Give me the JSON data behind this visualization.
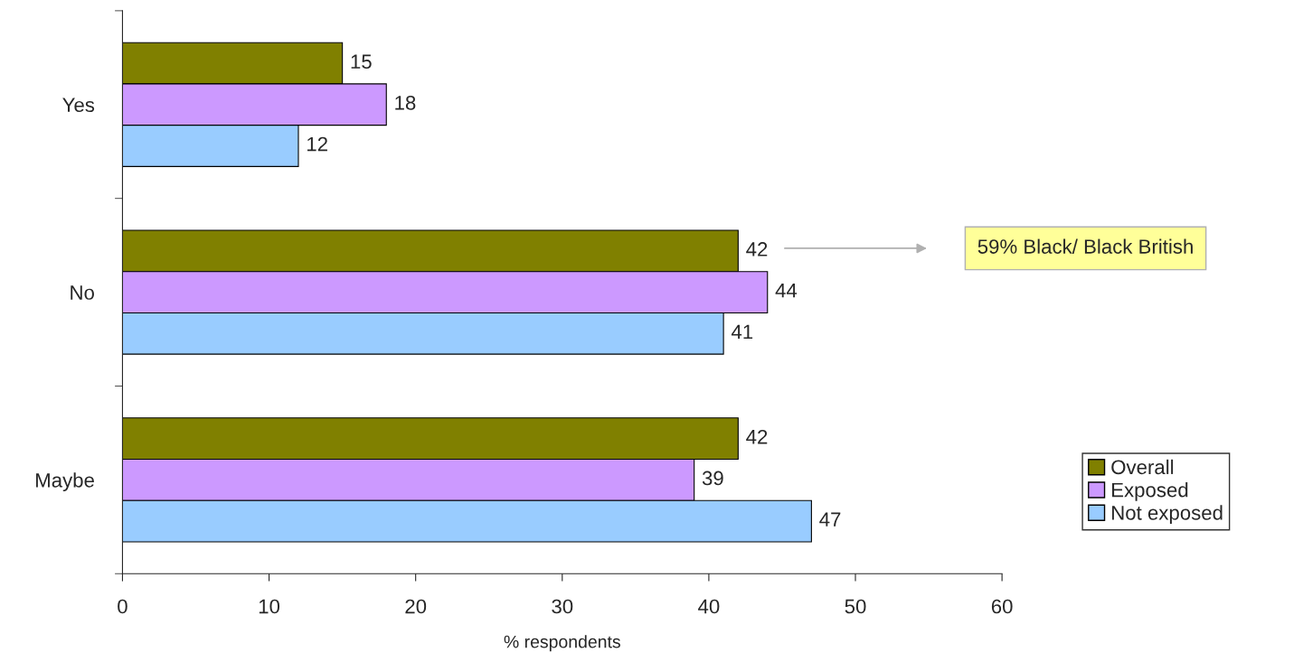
{
  "chart_data": {
    "type": "bar",
    "orientation": "horizontal",
    "xlabel": "% respondents",
    "categories": [
      "Yes",
      "No",
      "Maybe"
    ],
    "series": [
      {
        "name": "Overall",
        "color": "#808000",
        "values": [
          15,
          42,
          42
        ]
      },
      {
        "name": "Exposed",
        "color": "#cc99ff",
        "values": [
          18,
          44,
          39
        ]
      },
      {
        "name": "Not exposed",
        "color": "#99ccff",
        "values": [
          12,
          41,
          47
        ]
      }
    ],
    "xlim": [
      0,
      60
    ],
    "xticks": [
      0,
      10,
      20,
      30,
      40,
      50,
      60
    ],
    "data_labels": true,
    "grid": false,
    "legend": "bottom right",
    "annotations": [
      "59% Black/ Black British"
    ]
  }
}
